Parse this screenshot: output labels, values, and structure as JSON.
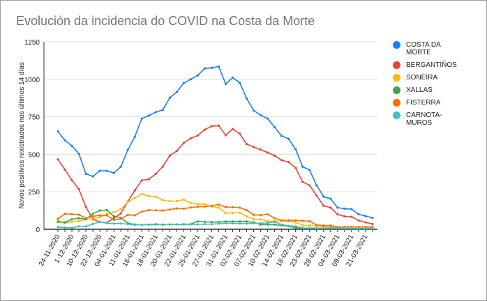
{
  "chart_data": {
    "type": "line",
    "title": "Evolución da incidencia do COVID na Costa da Morte",
    "xlabel": "",
    "ylabel": "Novos positivos rexistrados nos últimos 14 días",
    "ylim": [
      0,
      1250
    ],
    "yticks": [
      0,
      250,
      500,
      750,
      1000,
      1250
    ],
    "grid": true,
    "legend": "right",
    "x_tick_labels": [
      "24-11-2020",
      "1-12-2020",
      "10-12-2020",
      "22-12-2020",
      "04-01-2021",
      "11-01-2021",
      "16-01-2021",
      "18-01-2021",
      "20-01-2021",
      "22-01-2021",
      "25-01-2021",
      "27-01-2021",
      "31-01-2021",
      "02-02-2021",
      "07-02-2021",
      "10-02-2021",
      "14-02-2021",
      "18-02-2021",
      "23-02-2021",
      "28-02-2021",
      "04-03-2021",
      "09-03-2021",
      "21-03-2021"
    ],
    "series": [
      {
        "name": "COSTA DA MORTE",
        "color": "#1a7ff2",
        "values": [
          653,
          593,
          556,
          503,
          370,
          352,
          390,
          390,
          375,
          417,
          529,
          617,
          738,
          758,
          781,
          796,
          877,
          915,
          975,
          1000,
          1026,
          1073,
          1076,
          1085,
          969,
          1011,
          977,
          872,
          792,
          761,
          738,
          681,
          622,
          603,
          534,
          417,
          395,
          293,
          218,
          204,
          144,
          137,
          134,
          100,
          88,
          76
        ]
      },
      {
        "name": "BERGANTIÑOS",
        "color": "#ea4335",
        "values": [
          466,
          398,
          327,
          267,
          148,
          66,
          49,
          43,
          74,
          105,
          185,
          259,
          326,
          333,
          370,
          418,
          491,
          522,
          576,
          606,
          625,
          664,
          687,
          691,
          627,
          668,
          637,
          568,
          548,
          531,
          511,
          491,
          460,
          448,
          409,
          316,
          293,
          224,
          157,
          144,
          99,
          86,
          83,
          59,
          46,
          35
        ]
      },
      {
        "name": "SONEIRA",
        "color": "#fbbc04",
        "values": [
          59,
          40,
          49,
          56,
          66,
          71,
          80,
          100,
          113,
          133,
          182,
          208,
          235,
          221,
          218,
          194,
          187,
          188,
          198,
          174,
          168,
          168,
          151,
          144,
          108,
          108,
          111,
          85,
          66,
          66,
          54,
          54,
          54,
          54,
          46,
          26,
          25,
          22,
          19,
          15,
          15,
          15,
          15,
          15,
          15,
          15
        ]
      },
      {
        "name": "XALLAS",
        "color": "#34a853",
        "values": [
          49,
          46,
          66,
          74,
          66,
          103,
          125,
          128,
          86,
          77,
          40,
          32,
          29,
          31,
          34,
          29,
          32,
          32,
          34,
          34,
          52,
          49,
          48,
          48,
          51,
          51,
          52,
          52,
          46,
          31,
          31,
          31,
          25,
          20,
          10,
          8,
          6,
          5,
          5,
          5,
          5,
          5,
          5,
          5,
          5,
          5
        ]
      },
      {
        "name": "FISTERRA",
        "color": "#ff6d01",
        "values": [
          69,
          102,
          100,
          97,
          74,
          86,
          93,
          93,
          63,
          69,
          96,
          93,
          117,
          128,
          127,
          125,
          131,
          139,
          137,
          145,
          150,
          151,
          156,
          165,
          147,
          147,
          144,
          127,
          96,
          94,
          100,
          74,
          59,
          59,
          59,
          56,
          54,
          28,
          25,
          25,
          15,
          15,
          15,
          15,
          15,
          15
        ]
      },
      {
        "name": "CARNOTA-MUROS",
        "color": "#46bdc6",
        "values": [
          15,
          11,
          9,
          19,
          19,
          35,
          49,
          40,
          38,
          38,
          34,
          29,
          29,
          31,
          31,
          32,
          32,
          32,
          32,
          32,
          32,
          34,
          34,
          37,
          40,
          40,
          38,
          38,
          40,
          40,
          43,
          49,
          31,
          23,
          20,
          8,
          8,
          8,
          8,
          8,
          8,
          6,
          6,
          5,
          5,
          5
        ]
      }
    ]
  }
}
